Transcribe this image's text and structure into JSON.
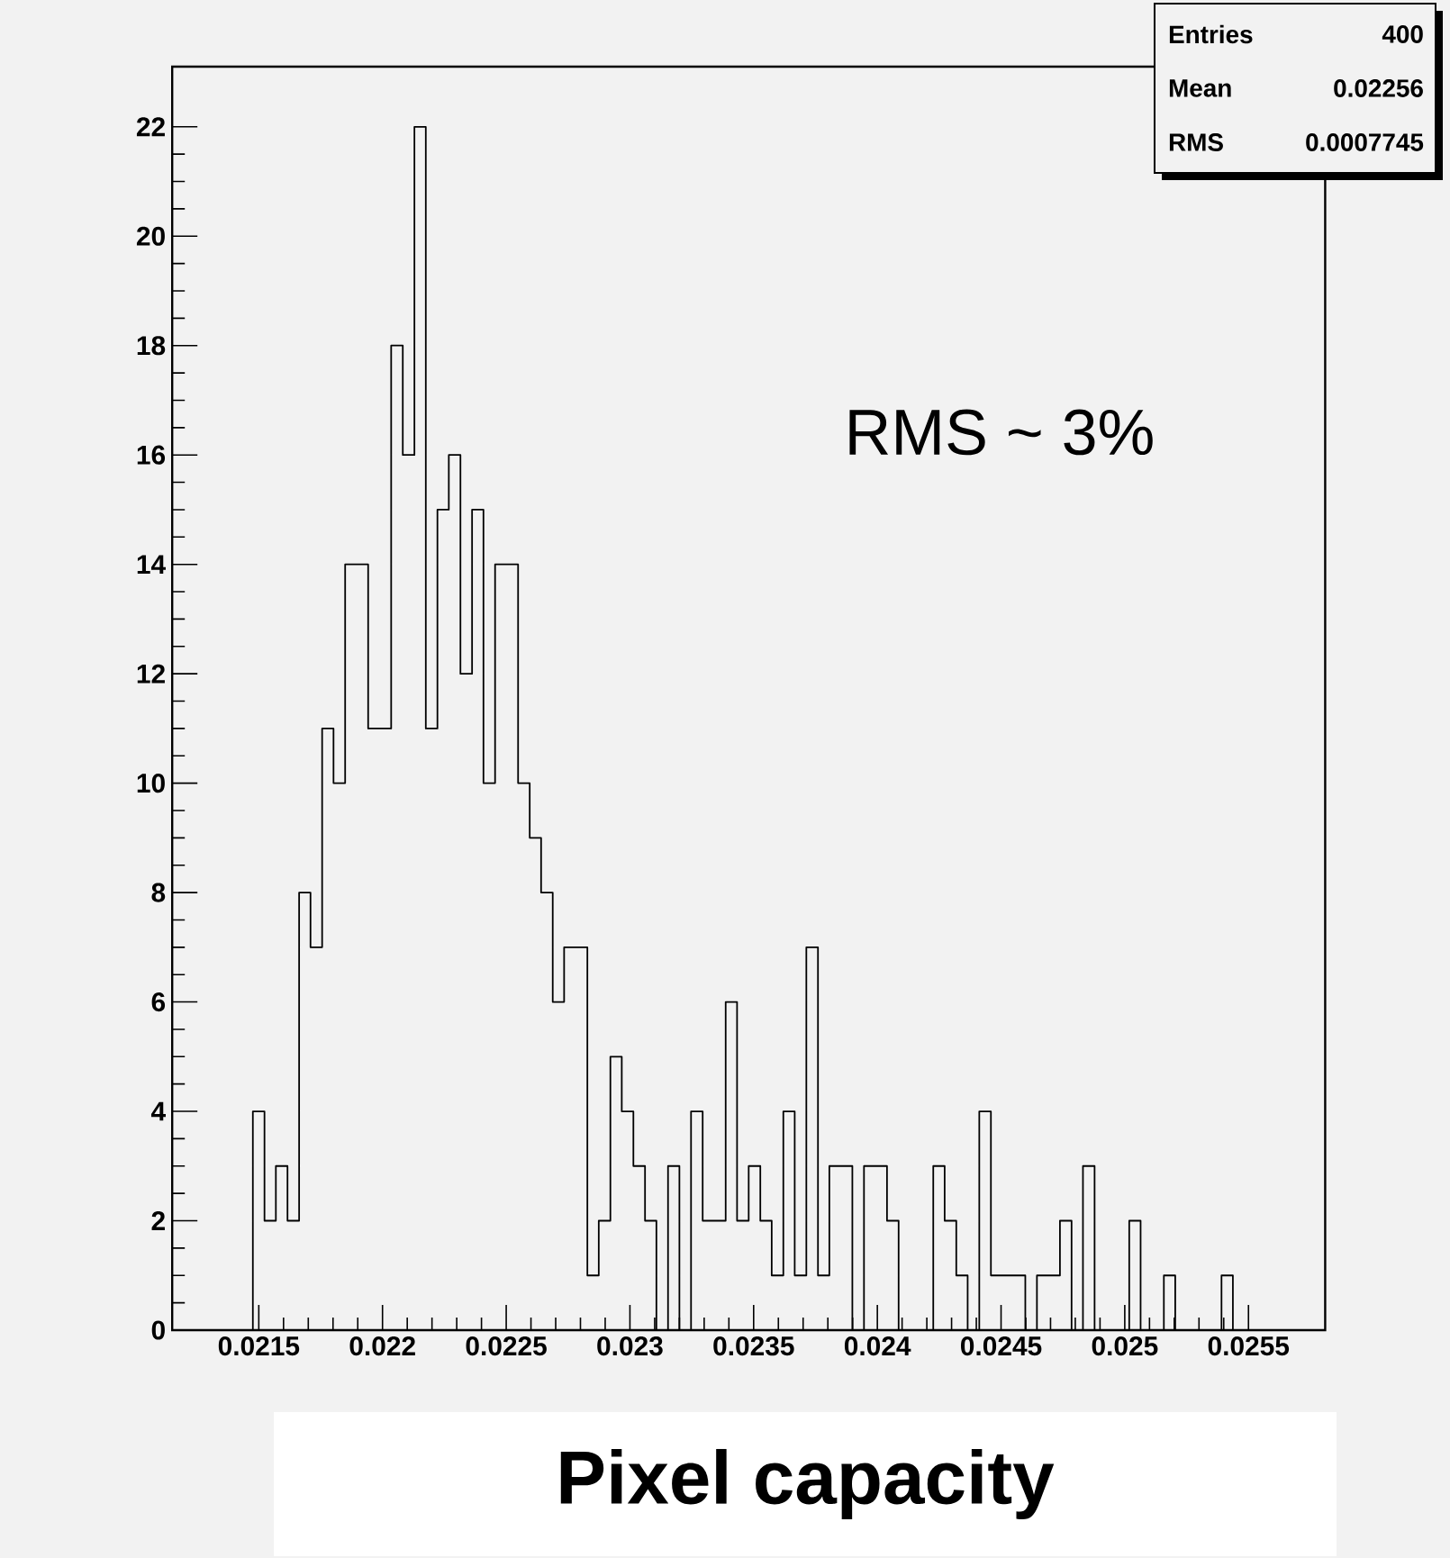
{
  "chart_data": {
    "type": "histogram",
    "xlabel": "Pixel capacity",
    "color": "#000000",
    "bins": [
      0.02115,
      0.021197,
      0.021243,
      0.02129,
      0.021336,
      0.021383,
      0.02143,
      0.021476,
      0.021523,
      0.021569,
      0.021616,
      0.021663,
      0.021709,
      0.021756,
      0.021802,
      0.021849,
      0.021896,
      0.021942,
      0.021989,
      0.022035,
      0.022082,
      0.022129,
      0.022175,
      0.022222,
      0.022268,
      0.022315,
      0.022362,
      0.022408,
      0.022455,
      0.022501,
      0.022548,
      0.022595,
      0.022641,
      0.022688,
      0.022734,
      0.022781,
      0.022828,
      0.022874,
      0.022921,
      0.022967,
      0.023014,
      0.023061,
      0.023107,
      0.023154,
      0.0232,
      0.023247,
      0.023294,
      0.02334,
      0.023387,
      0.023433,
      0.02348,
      0.023527,
      0.023573,
      0.02362,
      0.023666,
      0.023713,
      0.02376,
      0.023806,
      0.023853,
      0.023899,
      0.023946,
      0.023993,
      0.024039,
      0.024086,
      0.024132,
      0.024179,
      0.024226,
      0.024272,
      0.024319,
      0.024365,
      0.024412,
      0.024459,
      0.024505,
      0.024552,
      0.024598,
      0.024645,
      0.024692,
      0.024738,
      0.024785,
      0.024831,
      0.024878,
      0.024925,
      0.024971,
      0.025018,
      0.025064,
      0.025111,
      0.025158,
      0.025204,
      0.025251,
      0.025297,
      0.025344,
      0.025391,
      0.025437,
      0.025484,
      0.02553,
      0.025577,
      0.025624,
      0.02567,
      0.025717,
      0.025763,
      0.02581
    ],
    "values": [
      0,
      0,
      0,
      0,
      0,
      0,
      0,
      4,
      2,
      3,
      2,
      8,
      7,
      11,
      10,
      14,
      14,
      11,
      11,
      18,
      16,
      22,
      11,
      15,
      16,
      12,
      15,
      10,
      14,
      14,
      10,
      9,
      8,
      6,
      7,
      7,
      1,
      2,
      5,
      4,
      3,
      2,
      0,
      3,
      0,
      4,
      2,
      2,
      6,
      2,
      3,
      2,
      1,
      4,
      1,
      7,
      1,
      3,
      3,
      0,
      3,
      3,
      2,
      0,
      0,
      0,
      3,
      2,
      1,
      0,
      4,
      1,
      1,
      1,
      0,
      1,
      1,
      2,
      0,
      3,
      0,
      0,
      0,
      2,
      0,
      0,
      1,
      0,
      0,
      0,
      0,
      1,
      0,
      0,
      0,
      0,
      0,
      0,
      0,
      0
    ],
    "xlim": [
      0.02115,
      0.02581
    ],
    "ylim": [
      0,
      23.1
    ],
    "xticks": [
      0.0215,
      0.022,
      0.0225,
      0.023,
      0.0235,
      0.024,
      0.0245,
      0.025,
      0.0255
    ],
    "yticks": [
      0,
      2,
      4,
      6,
      8,
      10,
      12,
      14,
      16,
      18,
      20,
      22
    ],
    "annotations": [
      "Entries",
      "400",
      "Mean",
      "0.02256",
      "RMS",
      "0.0007745",
      "RMS ~ 3%"
    ]
  }
}
